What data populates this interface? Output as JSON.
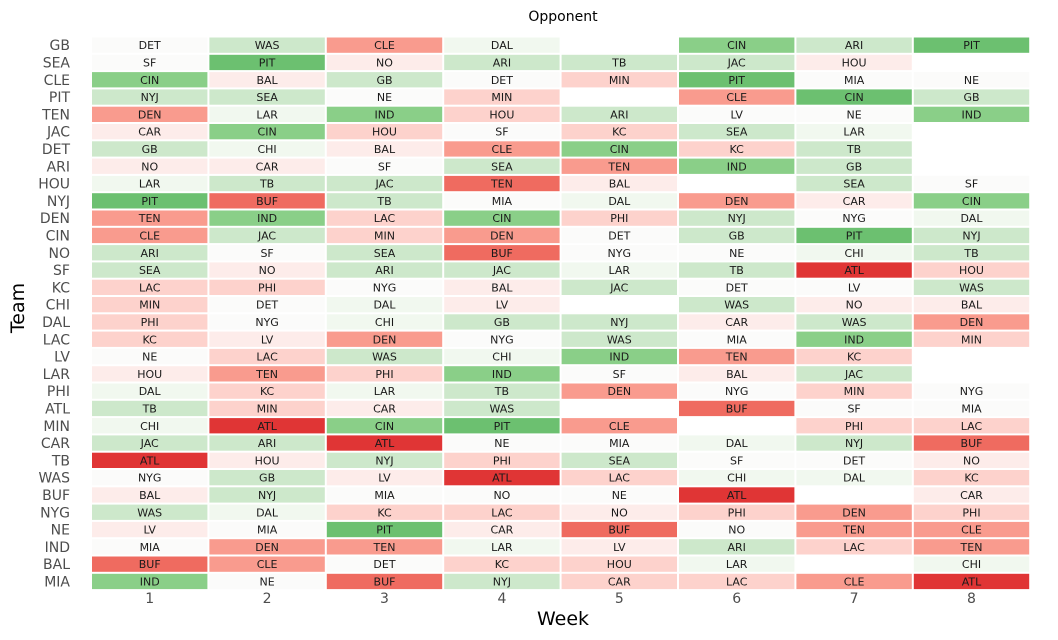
{
  "chart_data": {
    "type": "heatmap",
    "title": "Opponent",
    "xlabel": "Week",
    "ylabel": "Team",
    "weeks": [
      "1",
      "2",
      "3",
      "4",
      "5",
      "6",
      "7",
      "8"
    ],
    "teams": [
      "GB",
      "SEA",
      "CLE",
      "PIT",
      "TEN",
      "JAC",
      "DET",
      "ARI",
      "HOU",
      "NYJ",
      "DEN",
      "CIN",
      "NO",
      "SF",
      "KC",
      "CHI",
      "DAL",
      "LAC",
      "LV",
      "LAR",
      "PHI",
      "ATL",
      "MIN",
      "CAR",
      "TB",
      "WAS",
      "BUF",
      "NYG",
      "NE",
      "IND",
      "BAL",
      "MIA"
    ],
    "colors": {
      "g3": "#6cc070",
      "g2": "#8acf88",
      "g1": "#cde8cb",
      "g0": "#f1f8ef",
      "n": "#fbfbfa",
      "r0": "#fdecea",
      "r1": "#fdd2cc",
      "r2": "#f99b8e",
      "r3": "#ef6b60",
      "r4": "#e03535"
    },
    "matchups": [
      [
        [
          "DET",
          "n"
        ],
        [
          "WAS",
          "g1"
        ],
        [
          "CLE",
          "r2"
        ],
        [
          "DAL",
          "g0"
        ],
        null,
        [
          "CIN",
          "g2"
        ],
        [
          "ARI",
          "g1"
        ],
        [
          "PIT",
          "g3"
        ]
      ],
      [
        [
          "SF",
          "n"
        ],
        [
          "PIT",
          "g3"
        ],
        [
          "NO",
          "r0"
        ],
        [
          "ARI",
          "g1"
        ],
        [
          "TB",
          "g1"
        ],
        [
          "JAC",
          "g1"
        ],
        [
          "HOU",
          "r0"
        ],
        null
      ],
      [
        [
          "CIN",
          "g2"
        ],
        [
          "BAL",
          "r0"
        ],
        [
          "GB",
          "g1"
        ],
        [
          "DET",
          "n"
        ],
        [
          "MIN",
          "r1"
        ],
        [
          "PIT",
          "g3"
        ],
        [
          "MIA",
          "n"
        ],
        [
          "NE",
          "n"
        ]
      ],
      [
        [
          "NYJ",
          "g1"
        ],
        [
          "SEA",
          "g1"
        ],
        [
          "NE",
          "n"
        ],
        [
          "MIN",
          "r1"
        ],
        null,
        [
          "CLE",
          "r2"
        ],
        [
          "CIN",
          "g3"
        ],
        [
          "GB",
          "g1"
        ]
      ],
      [
        [
          "DEN",
          "r2"
        ],
        [
          "LAR",
          "g0"
        ],
        [
          "IND",
          "g2"
        ],
        [
          "HOU",
          "r1"
        ],
        [
          "ARI",
          "g1"
        ],
        [
          "LV",
          "n"
        ],
        [
          "NE",
          "n"
        ],
        [
          "IND",
          "g2"
        ]
      ],
      [
        [
          "CAR",
          "r0"
        ],
        [
          "CIN",
          "g2"
        ],
        [
          "HOU",
          "r1"
        ],
        [
          "SF",
          "n"
        ],
        [
          "KC",
          "r1"
        ],
        [
          "SEA",
          "g1"
        ],
        [
          "LAR",
          "g0"
        ],
        null
      ],
      [
        [
          "GB",
          "g1"
        ],
        [
          "CHI",
          "g0"
        ],
        [
          "BAL",
          "r0"
        ],
        [
          "CLE",
          "r2"
        ],
        [
          "CIN",
          "g2"
        ],
        [
          "KC",
          "r1"
        ],
        [
          "TB",
          "g1"
        ],
        null
      ],
      [
        [
          "NO",
          "r0"
        ],
        [
          "CAR",
          "r0"
        ],
        [
          "SF",
          "n"
        ],
        [
          "SEA",
          "g1"
        ],
        [
          "TEN",
          "r2"
        ],
        [
          "IND",
          "g2"
        ],
        [
          "GB",
          "g1"
        ],
        null
      ],
      [
        [
          "LAR",
          "g0"
        ],
        [
          "TB",
          "g1"
        ],
        [
          "JAC",
          "g1"
        ],
        [
          "TEN",
          "r3"
        ],
        [
          "BAL",
          "r0"
        ],
        null,
        [
          "SEA",
          "g1"
        ],
        [
          "SF",
          "n"
        ]
      ],
      [
        [
          "PIT",
          "g3"
        ],
        [
          "BUF",
          "r3"
        ],
        [
          "TB",
          "g1"
        ],
        [
          "MIA",
          "n"
        ],
        [
          "DAL",
          "g0"
        ],
        [
          "DEN",
          "r2"
        ],
        [
          "CAR",
          "r0"
        ],
        [
          "CIN",
          "g2"
        ]
      ],
      [
        [
          "TEN",
          "r2"
        ],
        [
          "IND",
          "g2"
        ],
        [
          "LAC",
          "r1"
        ],
        [
          "CIN",
          "g2"
        ],
        [
          "PHI",
          "r1"
        ],
        [
          "NYJ",
          "g1"
        ],
        [
          "NYG",
          "n"
        ],
        [
          "DAL",
          "g0"
        ]
      ],
      [
        [
          "CLE",
          "r2"
        ],
        [
          "JAC",
          "g1"
        ],
        [
          "MIN",
          "r1"
        ],
        [
          "DEN",
          "r2"
        ],
        [
          "DET",
          "n"
        ],
        [
          "GB",
          "g1"
        ],
        [
          "PIT",
          "g3"
        ],
        [
          "NYJ",
          "g1"
        ]
      ],
      [
        [
          "ARI",
          "g1"
        ],
        [
          "SF",
          "n"
        ],
        [
          "SEA",
          "g1"
        ],
        [
          "BUF",
          "r3"
        ],
        [
          "NYG",
          "n"
        ],
        [
          "NE",
          "n"
        ],
        [
          "CHI",
          "g0"
        ],
        [
          "TB",
          "g1"
        ]
      ],
      [
        [
          "SEA",
          "g1"
        ],
        [
          "NO",
          "r0"
        ],
        [
          "ARI",
          "g1"
        ],
        [
          "JAC",
          "g1"
        ],
        [
          "LAR",
          "g0"
        ],
        [
          "TB",
          "g1"
        ],
        [
          "ATL",
          "r4"
        ],
        [
          "HOU",
          "r1"
        ]
      ],
      [
        [
          "LAC",
          "r1"
        ],
        [
          "PHI",
          "r1"
        ],
        [
          "NYG",
          "n"
        ],
        [
          "BAL",
          "r0"
        ],
        [
          "JAC",
          "g1"
        ],
        [
          "DET",
          "n"
        ],
        [
          "LV",
          "n"
        ],
        [
          "WAS",
          "g1"
        ]
      ],
      [
        [
          "MIN",
          "r1"
        ],
        [
          "DET",
          "n"
        ],
        [
          "DAL",
          "g0"
        ],
        [
          "LV",
          "r0"
        ],
        null,
        [
          "WAS",
          "g1"
        ],
        [
          "NO",
          "r0"
        ],
        [
          "BAL",
          "r0"
        ]
      ],
      [
        [
          "PHI",
          "r1"
        ],
        [
          "NYG",
          "n"
        ],
        [
          "CHI",
          "g0"
        ],
        [
          "GB",
          "g1"
        ],
        [
          "NYJ",
          "g1"
        ],
        [
          "CAR",
          "r0"
        ],
        [
          "WAS",
          "g1"
        ],
        [
          "DEN",
          "r2"
        ]
      ],
      [
        [
          "KC",
          "r1"
        ],
        [
          "LV",
          "r0"
        ],
        [
          "DEN",
          "r2"
        ],
        [
          "NYG",
          "n"
        ],
        [
          "WAS",
          "g1"
        ],
        [
          "MIA",
          "n"
        ],
        [
          "IND",
          "g2"
        ],
        [
          "MIN",
          "r1"
        ]
      ],
      [
        [
          "NE",
          "n"
        ],
        [
          "LAC",
          "r1"
        ],
        [
          "WAS",
          "g1"
        ],
        [
          "CHI",
          "g0"
        ],
        [
          "IND",
          "g2"
        ],
        [
          "TEN",
          "r2"
        ],
        [
          "KC",
          "r1"
        ],
        null
      ],
      [
        [
          "HOU",
          "r0"
        ],
        [
          "TEN",
          "r2"
        ],
        [
          "PHI",
          "r1"
        ],
        [
          "IND",
          "g2"
        ],
        [
          "SF",
          "n"
        ],
        [
          "BAL",
          "r0"
        ],
        [
          "JAC",
          "g1"
        ],
        null
      ],
      [
        [
          "DAL",
          "g0"
        ],
        [
          "KC",
          "r1"
        ],
        [
          "LAR",
          "g0"
        ],
        [
          "TB",
          "g1"
        ],
        [
          "DEN",
          "r2"
        ],
        [
          "NYG",
          "n"
        ],
        [
          "MIN",
          "r1"
        ],
        [
          "NYG",
          "n"
        ]
      ],
      [
        [
          "TB",
          "g1"
        ],
        [
          "MIN",
          "r1"
        ],
        [
          "CAR",
          "r0"
        ],
        [
          "WAS",
          "g1"
        ],
        null,
        [
          "BUF",
          "r3"
        ],
        [
          "SF",
          "n"
        ],
        [
          "MIA",
          "n"
        ]
      ],
      [
        [
          "CHI",
          "g0"
        ],
        [
          "ATL",
          "r4"
        ],
        [
          "CIN",
          "g2"
        ],
        [
          "PIT",
          "g3"
        ],
        [
          "CLE",
          "r2"
        ],
        null,
        [
          "PHI",
          "r1"
        ],
        [
          "LAC",
          "r1"
        ]
      ],
      [
        [
          "JAC",
          "g1"
        ],
        [
          "ARI",
          "g1"
        ],
        [
          "ATL",
          "r4"
        ],
        [
          "NE",
          "n"
        ],
        [
          "MIA",
          "n"
        ],
        [
          "DAL",
          "g0"
        ],
        [
          "NYJ",
          "g1"
        ],
        [
          "BUF",
          "r3"
        ]
      ],
      [
        [
          "ATL",
          "r4"
        ],
        [
          "HOU",
          "r0"
        ],
        [
          "NYJ",
          "g1"
        ],
        [
          "PHI",
          "r1"
        ],
        [
          "SEA",
          "g1"
        ],
        [
          "SF",
          "n"
        ],
        [
          "DET",
          "n"
        ],
        [
          "NO",
          "r0"
        ]
      ],
      [
        [
          "NYG",
          "n"
        ],
        [
          "GB",
          "g1"
        ],
        [
          "LV",
          "r0"
        ],
        [
          "ATL",
          "r4"
        ],
        [
          "LAC",
          "r1"
        ],
        [
          "CHI",
          "g0"
        ],
        [
          "DAL",
          "g0"
        ],
        [
          "KC",
          "r1"
        ]
      ],
      [
        [
          "BAL",
          "r0"
        ],
        [
          "NYJ",
          "g1"
        ],
        [
          "MIA",
          "n"
        ],
        [
          "NO",
          "n"
        ],
        [
          "NE",
          "n"
        ],
        [
          "ATL",
          "r4"
        ],
        null,
        [
          "CAR",
          "r0"
        ]
      ],
      [
        [
          "WAS",
          "g1"
        ],
        [
          "DAL",
          "g0"
        ],
        [
          "KC",
          "r1"
        ],
        [
          "LAC",
          "r1"
        ],
        [
          "NO",
          "r0"
        ],
        [
          "PHI",
          "r1"
        ],
        [
          "DEN",
          "r2"
        ],
        [
          "PHI",
          "r1"
        ]
      ],
      [
        [
          "LV",
          "r0"
        ],
        [
          "MIA",
          "n"
        ],
        [
          "PIT",
          "g3"
        ],
        [
          "CAR",
          "r0"
        ],
        [
          "BUF",
          "r3"
        ],
        [
          "NO",
          "n"
        ],
        [
          "TEN",
          "r2"
        ],
        [
          "CLE",
          "r2"
        ]
      ],
      [
        [
          "MIA",
          "n"
        ],
        [
          "DEN",
          "r2"
        ],
        [
          "TEN",
          "r2"
        ],
        [
          "LAR",
          "g0"
        ],
        [
          "LV",
          "r0"
        ],
        [
          "ARI",
          "g1"
        ],
        [
          "LAC",
          "r1"
        ],
        [
          "TEN",
          "r2"
        ]
      ],
      [
        [
          "BUF",
          "r3"
        ],
        [
          "CLE",
          "r2"
        ],
        [
          "DET",
          "n"
        ],
        [
          "KC",
          "r1"
        ],
        [
          "HOU",
          "r1"
        ],
        [
          "LAR",
          "g0"
        ],
        null,
        [
          "CHI",
          "g0"
        ]
      ],
      [
        [
          "IND",
          "g2"
        ],
        [
          "NE",
          "n"
        ],
        [
          "BUF",
          "r3"
        ],
        [
          "NYJ",
          "g1"
        ],
        [
          "CAR",
          "r1"
        ],
        [
          "LAC",
          "r1"
        ],
        [
          "CLE",
          "r2"
        ],
        [
          "ATL",
          "r4"
        ]
      ]
    ]
  }
}
